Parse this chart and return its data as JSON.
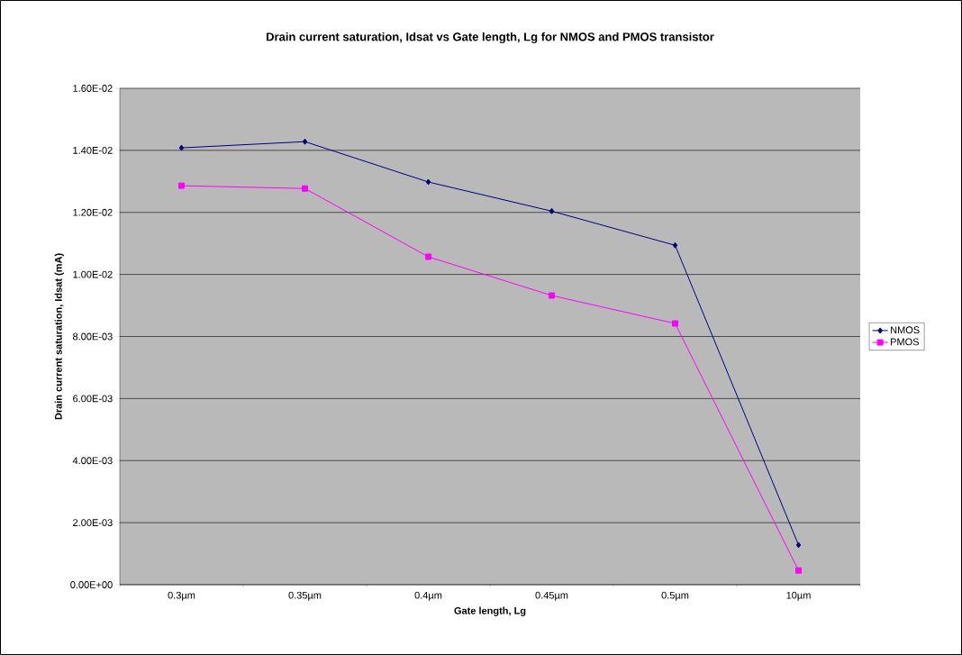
{
  "chart_data": {
    "type": "line",
    "title": "Drain current saturation, Idsat vs Gate length, Lg for NMOS and PMOS transistor",
    "xlabel": "Gate length, Lg",
    "ylabel": "Drain current saturation, Idsat (mA)",
    "categories": [
      "0.3µm",
      "0.35µm",
      "0.4µm",
      "0.45µm",
      "0.5µm",
      "10µm"
    ],
    "series": [
      {
        "name": "NMOS",
        "color": "#000080",
        "marker": "diamond",
        "values": [
          0.01408,
          0.01428,
          0.01298,
          0.01204,
          0.01094,
          0.00128
        ]
      },
      {
        "name": "PMOS",
        "color": "#ff00ff",
        "marker": "square",
        "values": [
          0.01286,
          0.01277,
          0.01057,
          0.00932,
          0.00842,
          0.00046
        ]
      }
    ],
    "ylim": [
      0,
      0.016
    ],
    "yticks": [
      {
        "value": 0,
        "label": "0.00E+00"
      },
      {
        "value": 0.002,
        "label": "2.00E-03"
      },
      {
        "value": 0.004,
        "label": "4.00E-03"
      },
      {
        "value": 0.006,
        "label": "6.00E-03"
      },
      {
        "value": 0.008,
        "label": "8.00E-03"
      },
      {
        "value": 0.01,
        "label": "1.00E-02"
      },
      {
        "value": 0.012,
        "label": "1.20E-02"
      },
      {
        "value": 0.014,
        "label": "1.40E-02"
      },
      {
        "value": 0.016,
        "label": "1.60E-02"
      }
    ],
    "grid": "y",
    "legend": "right",
    "line_style": "solid"
  }
}
